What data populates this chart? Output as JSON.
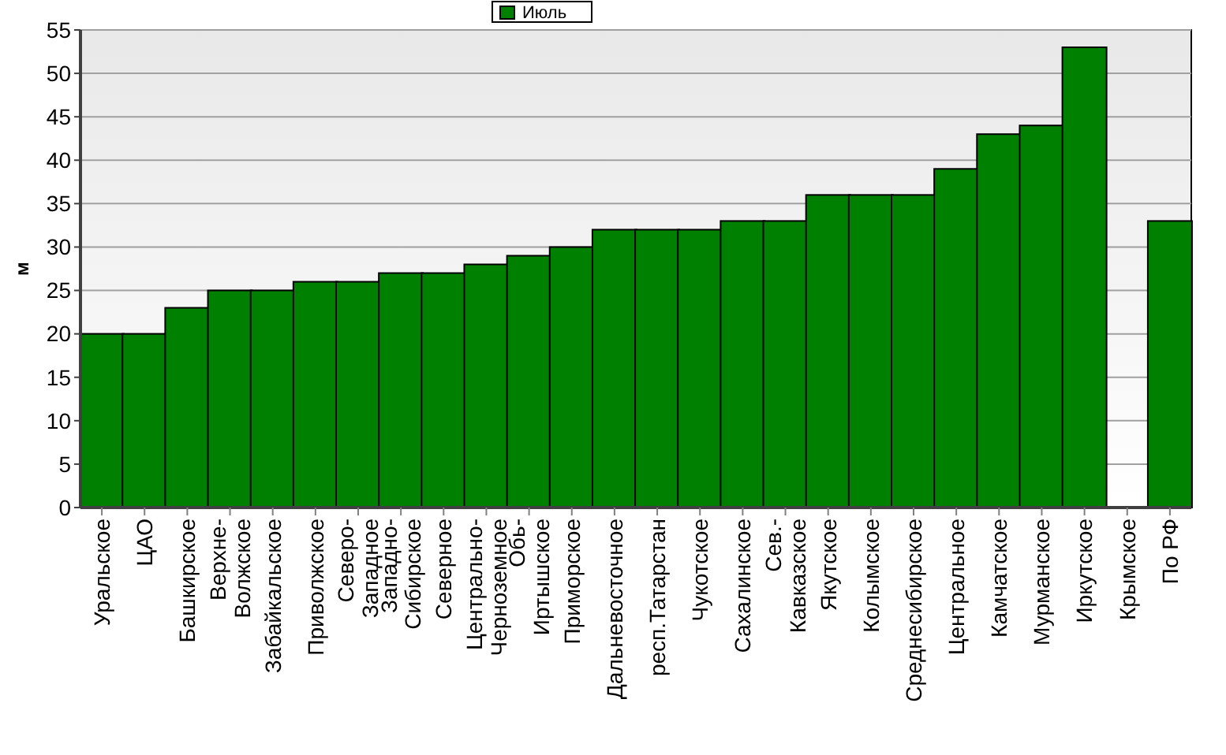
{
  "chart_data": {
    "type": "bar",
    "ylabel": "м",
    "legend": "top",
    "categories": [
      "Уральское",
      "ЦАО",
      "Башкирское",
      "Верхне-Волжское",
      "Забайкальское",
      "Приволжское",
      "Северо-Западное",
      "Западно-Сибирское",
      "Северное",
      "Центрально-Черноземное",
      "Обь-Иртышское",
      "Приморское",
      "Дальневосточное",
      "респ.Татарстан",
      "Чукотское",
      "Сахалинское",
      "Сев.-Кавказское",
      "Якутское",
      "Колымское",
      "Среднесибирское",
      "Центральное",
      "Камчатское",
      "Мурманское",
      "Иркутское",
      "Крымское",
      "По РФ"
    ],
    "series": [
      {
        "name": "Июль",
        "color": "#008000",
        "values": [
          20,
          20,
          23,
          25,
          25,
          26,
          26,
          27,
          27,
          28,
          29,
          30,
          32,
          32,
          32,
          33,
          33,
          36,
          36,
          36,
          39,
          43,
          44,
          53,
          null,
          33
        ]
      }
    ],
    "ylim": [
      0,
      55
    ],
    "yticks": [
      0,
      5,
      10,
      15,
      20,
      25,
      30,
      35,
      40,
      45,
      50,
      55
    ],
    "grid": "y"
  }
}
